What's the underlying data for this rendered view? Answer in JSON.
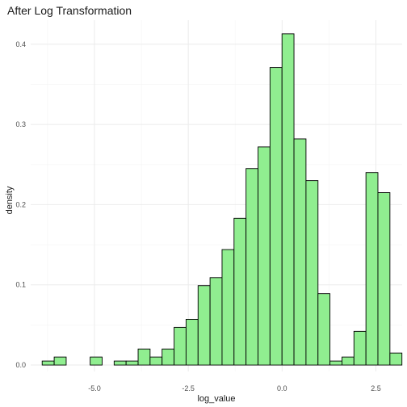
{
  "chart_data": {
    "type": "bar",
    "title": "After Log Transformation",
    "xlabel": "log_value",
    "ylabel": "density",
    "xlim": [
      -6.7,
      3.2
    ],
    "ylim": [
      -0.008,
      0.43
    ],
    "x_ticks": [
      -5.0,
      -2.5,
      0.0,
      2.5
    ],
    "x_tick_labels": [
      "-5.0",
      "-2.5",
      "0.0",
      "2.5"
    ],
    "y_ticks": [
      0.0,
      0.1,
      0.2,
      0.3,
      0.4
    ],
    "y_tick_labels": [
      "0.0",
      "0.1",
      "0.2",
      "0.3",
      "0.4"
    ],
    "grid": true,
    "bin_width": 0.3196,
    "bins": [
      {
        "x0": -6.394,
        "x1": -6.074,
        "value": 0.005
      },
      {
        "x0": -6.074,
        "x1": -5.754,
        "value": 0.01
      },
      {
        "x0": -5.754,
        "x1": -5.435,
        "value": 0.0
      },
      {
        "x0": -5.435,
        "x1": -5.115,
        "value": 0.0
      },
      {
        "x0": -5.115,
        "x1": -4.796,
        "value": 0.01
      },
      {
        "x0": -4.796,
        "x1": -4.476,
        "value": 0.0
      },
      {
        "x0": -4.476,
        "x1": -4.157,
        "value": 0.005
      },
      {
        "x0": -4.157,
        "x1": -3.837,
        "value": 0.005
      },
      {
        "x0": -3.837,
        "x1": -3.518,
        "value": 0.02
      },
      {
        "x0": -3.518,
        "x1": -3.198,
        "value": 0.01
      },
      {
        "x0": -3.198,
        "x1": -2.878,
        "value": 0.02
      },
      {
        "x0": -2.878,
        "x1": -2.559,
        "value": 0.047
      },
      {
        "x0": -2.559,
        "x1": -2.239,
        "value": 0.057
      },
      {
        "x0": -2.239,
        "x1": -1.92,
        "value": 0.099
      },
      {
        "x0": -1.92,
        "x1": -1.6,
        "value": 0.109
      },
      {
        "x0": -1.6,
        "x1": -1.281,
        "value": 0.144
      },
      {
        "x0": -1.281,
        "x1": -0.961,
        "value": 0.183
      },
      {
        "x0": -0.961,
        "x1": -0.641,
        "value": 0.245
      },
      {
        "x0": -0.641,
        "x1": -0.322,
        "value": 0.272
      },
      {
        "x0": -0.322,
        "x1": -0.002,
        "value": 0.371
      },
      {
        "x0": -0.002,
        "x1": 0.317,
        "value": 0.413
      },
      {
        "x0": 0.317,
        "x1": 0.637,
        "value": 0.282
      },
      {
        "x0": 0.637,
        "x1": 0.957,
        "value": 0.23
      },
      {
        "x0": 0.957,
        "x1": 1.276,
        "value": 0.089
      },
      {
        "x0": 1.276,
        "x1": 1.596,
        "value": 0.005
      },
      {
        "x0": 1.596,
        "x1": 1.915,
        "value": 0.01
      },
      {
        "x0": 1.915,
        "x1": 2.235,
        "value": 0.042
      },
      {
        "x0": 2.235,
        "x1": 2.554,
        "value": 0.24
      },
      {
        "x0": 2.554,
        "x1": 2.874,
        "value": 0.215
      },
      {
        "x0": 2.874,
        "x1": 3.194,
        "value": 0.015
      }
    ],
    "fill_color": "#90EE90",
    "stroke_color": "#000000"
  }
}
